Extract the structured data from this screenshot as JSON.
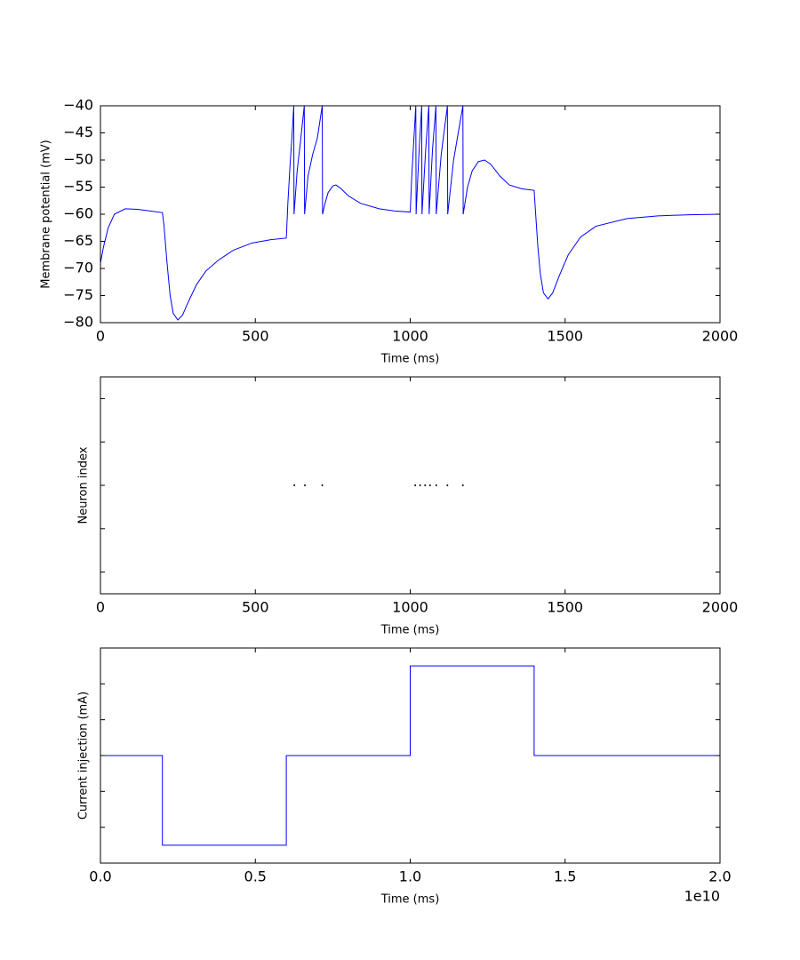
{
  "chart_data": [
    {
      "type": "line",
      "xlabel": "Time (ms)",
      "ylabel": "Membrane potential (mV)",
      "xlim": [
        0,
        2000
      ],
      "xticks": [
        0,
        500,
        1000,
        1500,
        2000
      ],
      "ylim": [
        -80,
        -40
      ],
      "yticks": [
        {
          "value": -80,
          "label": "−80"
        },
        {
          "value": -75,
          "label": "−75"
        },
        {
          "value": -70,
          "label": "−70"
        },
        {
          "value": -65,
          "label": "−65"
        },
        {
          "value": -60,
          "label": "−60"
        },
        {
          "value": -55,
          "label": "−55"
        },
        {
          "value": -50,
          "label": "−50"
        },
        {
          "value": -45,
          "label": "−45"
        },
        {
          "value": -40,
          "label": "−40"
        }
      ],
      "series": [
        {
          "color": "#0000ff",
          "x": [
            0,
            10,
            25,
            45,
            80,
            120,
            160,
            200,
            205,
            215,
            225,
            235,
            250,
            265,
            285,
            310,
            340,
            380,
            430,
            490,
            550,
            600,
            605,
            612,
            618,
            624,
            625,
            635,
            645,
            658,
            659,
            670,
            685,
            700,
            716,
            717,
            725,
            735,
            750,
            760,
            775,
            800,
            840,
            900,
            950,
            1000,
            1005,
            1012,
            1018,
            1019,
            1028,
            1037,
            1038,
            1050,
            1060,
            1061,
            1072,
            1083,
            1084,
            1100,
            1120,
            1121,
            1140,
            1155,
            1170,
            1171,
            1185,
            1200,
            1220,
            1240,
            1260,
            1290,
            1320,
            1360,
            1400,
            1405,
            1412,
            1420,
            1430,
            1445,
            1460,
            1480,
            1510,
            1550,
            1600,
            1700,
            1800,
            1900,
            2000
          ],
          "values": [
            -69,
            -66,
            -62.5,
            -60,
            -59,
            -59.1,
            -59.4,
            -59.7,
            -62,
            -69,
            -75,
            -78.3,
            -79.5,
            -78.6,
            -76,
            -73,
            -70.5,
            -68.5,
            -66.6,
            -65.3,
            -64.7,
            -64.4,
            -58,
            -51,
            -46,
            -40,
            -60,
            -52,
            -47,
            -40,
            -60,
            -53,
            -49,
            -46,
            -40,
            -60,
            -58,
            -56,
            -54.8,
            -54.6,
            -55.2,
            -56.6,
            -58,
            -59,
            -59.4,
            -59.6,
            -53,
            -46,
            -40,
            -60,
            -49,
            -40,
            -60,
            -48,
            -40,
            -60,
            -48,
            -40,
            -60,
            -49,
            -40,
            -60,
            -50,
            -45,
            -40,
            -60,
            -55,
            -52,
            -50.3,
            -50,
            -50.8,
            -53,
            -54.6,
            -55.3,
            -55.6,
            -60,
            -66,
            -71,
            -74.5,
            -75.6,
            -74.5,
            -71.5,
            -67.5,
            -64.2,
            -62.2,
            -60.8,
            -60.3,
            -60.1,
            -60
          ]
        }
      ]
    },
    {
      "type": "scatter",
      "xlabel": "Time (ms)",
      "ylabel": "Neuron index",
      "xlim": [
        0,
        2000
      ],
      "xticks": [
        0,
        500,
        1000,
        1500,
        2000
      ],
      "ylim": [
        -1,
        1
      ],
      "yticks": [
        -0.8,
        -0.4,
        0,
        0.4,
        0.8
      ],
      "ytick_labels": false,
      "series": [
        {
          "color": "#000000",
          "x": [
            626,
            660,
            716,
            1016,
            1032,
            1048,
            1064,
            1084,
            1120,
            1170
          ],
          "values": [
            0,
            0,
            0,
            0,
            0,
            0,
            0,
            0,
            0,
            0
          ]
        }
      ]
    },
    {
      "type": "line",
      "xlabel": "Time (ms)",
      "ylabel": "Current injection (mA)",
      "x_offset_label": "1e10",
      "xlim": [
        0,
        20000000000
      ],
      "xticks": [
        {
          "value": 0,
          "label": "0.0"
        },
        {
          "value": 5000000000,
          "label": "0.5"
        },
        {
          "value": 10000000000,
          "label": "1.0"
        },
        {
          "value": 15000000000,
          "label": "1.5"
        },
        {
          "value": 20000000000,
          "label": "2.0"
        }
      ],
      "ylim": [
        -1.5,
        1.5
      ],
      "yticks": [
        -1,
        -0.5,
        0,
        0.5,
        1
      ],
      "ytick_labels": false,
      "series": [
        {
          "color": "#0000ff",
          "x": [
            0,
            2000000000,
            2000000000,
            6000000000,
            6000000000,
            10000000000,
            10000000000,
            14000000000,
            14000000000,
            20000000000
          ],
          "values": [
            0,
            0,
            -1.25,
            -1.25,
            0,
            0,
            1.25,
            1.25,
            0,
            0
          ]
        }
      ]
    }
  ]
}
